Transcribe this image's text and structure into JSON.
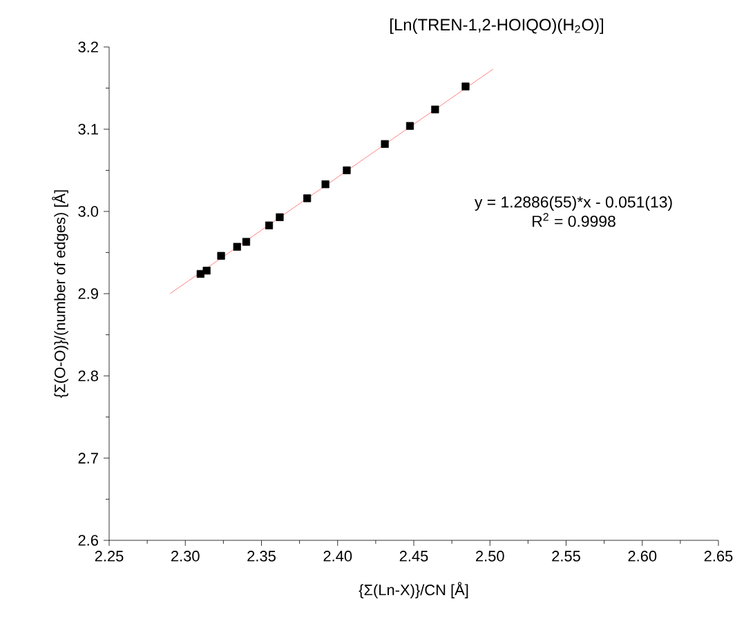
{
  "chart_data": {
    "type": "scatter",
    "title": "[Ln(TREN-1,2-HOIQO)(H$_{2}$O)]",
    "xlabel": "{Σ(Ln-X)}/CN [Å]",
    "ylabel": "{Σ(O-O)}/(number of edges) [Å]",
    "annotations": [
      "y = 1.2886(55)*x - 0.051(13)",
      "R$^{2}$ = 0.9998"
    ],
    "xlim": [
      2.25,
      2.65
    ],
    "ylim": [
      2.6,
      3.2
    ],
    "xticks": [
      {
        "value": 2.25,
        "label": "2.25"
      },
      {
        "value": 2.3,
        "label": "2.30"
      },
      {
        "value": 2.35,
        "label": "2.35"
      },
      {
        "value": 2.4,
        "label": "2.40"
      },
      {
        "value": 2.45,
        "label": "2.45"
      },
      {
        "value": 2.5,
        "label": "2.50"
      },
      {
        "value": 2.55,
        "label": "2.55"
      },
      {
        "value": 2.6,
        "label": "2.60"
      },
      {
        "value": 2.65,
        "label": "2.65"
      }
    ],
    "yticks": [
      {
        "value": 2.6,
        "label": "2.6"
      },
      {
        "value": 2.7,
        "label": "2.7"
      },
      {
        "value": 2.8,
        "label": "2.8"
      },
      {
        "value": 2.9,
        "label": "2.9"
      },
      {
        "value": 3.0,
        "label": "3.0"
      },
      {
        "value": 3.1,
        "label": "3.1"
      },
      {
        "value": 3.2,
        "label": "3.2"
      }
    ],
    "grid": false,
    "series": [
      {
        "color": "#000000",
        "marker": "square",
        "x": [
          2.31,
          2.314,
          2.3235,
          2.334,
          2.34,
          2.355,
          2.362,
          2.38,
          2.392,
          2.406,
          2.431,
          2.4475,
          2.464,
          2.484
        ],
        "values": [
          2.924,
          2.928,
          2.946,
          2.957,
          2.963,
          2.983,
          2.993,
          3.016,
          3.033,
          3.05,
          3.082,
          3.104,
          3.124,
          3.152
        ]
      },
      {
        "type": "line",
        "color": "#ff8080",
        "marker": "none",
        "line_style": "solid",
        "x": [
          2.29,
          2.502
        ],
        "values": [
          2.9,
          3.173
        ]
      }
    ]
  }
}
